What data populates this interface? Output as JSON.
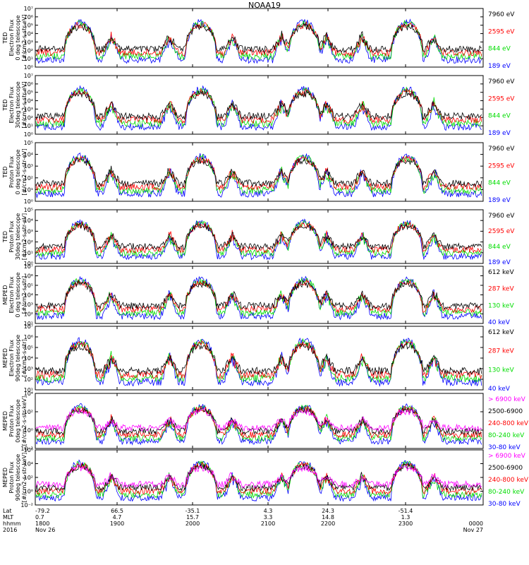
{
  "title": "NOAA19",
  "colors": {
    "black": "#000000",
    "red": "#ff0000",
    "green": "#00dd00",
    "blue": "#0000ff",
    "magenta": "#ff00ff"
  },
  "chart_data": [
    {
      "type": "line",
      "instrument": "TED",
      "ylabel": [
        "TED",
        "Electron Flux",
        "0 deg telescope",
        "[#/cm2-s-str-eV]"
      ],
      "ylim": [
        1,
        10000000
      ],
      "scale": "log",
      "yticks": [
        "10⁰",
        "10¹",
        "10²",
        "10³",
        "10⁴",
        "10⁵",
        "10⁶",
        "10⁷"
      ],
      "legend": [
        {
          "label": "7960 eV",
          "color": "#000000"
        },
        {
          "label": "2595 eV",
          "color": "#ff0000"
        },
        {
          "label": "844 eV",
          "color": "#00dd00"
        },
        {
          "label": "189 eV",
          "color": "#0000ff"
        }
      ]
    },
    {
      "type": "line",
      "instrument": "TED",
      "ylabel": [
        "TED",
        "Electron Flux",
        "30deg telescope",
        "[#/cm2-s-str-eV]"
      ],
      "ylim": [
        1,
        10000000
      ],
      "scale": "log",
      "yticks": [
        "10⁰",
        "10¹",
        "10²",
        "10³",
        "10⁴",
        "10⁵",
        "10⁶",
        "10⁷"
      ],
      "legend": [
        {
          "label": "7960 eV",
          "color": "#000000"
        },
        {
          "label": "2595 eV",
          "color": "#ff0000"
        },
        {
          "label": "844 eV",
          "color": "#00dd00"
        },
        {
          "label": "189 eV",
          "color": "#0000ff"
        }
      ]
    },
    {
      "type": "line",
      "instrument": "TED",
      "ylabel": [
        "TED",
        "Proton Flux",
        "0 deg telescope",
        "[#/cm2-s-str-eV]"
      ],
      "ylim": [
        1,
        100000
      ],
      "scale": "log",
      "yticks": [
        "10⁰",
        "10¹",
        "10²",
        "10³",
        "10⁴",
        "10⁵"
      ],
      "legend": [
        {
          "label": "7960 eV",
          "color": "#000000"
        },
        {
          "label": "2595 eV",
          "color": "#ff0000"
        },
        {
          "label": "844 eV",
          "color": "#00dd00"
        },
        {
          "label": "189 eV",
          "color": "#0000ff"
        }
      ]
    },
    {
      "type": "line",
      "instrument": "TED",
      "ylabel": [
        "TED",
        "Proton Flux",
        "30deg telescope",
        "[#/cm2-s-str-eV]"
      ],
      "ylim": [
        1,
        100000
      ],
      "scale": "log",
      "yticks": [
        "10⁰",
        "10¹",
        "10²",
        "10³",
        "10⁴",
        "10⁵"
      ],
      "legend": [
        {
          "label": "7960 eV",
          "color": "#000000"
        },
        {
          "label": "2595 eV",
          "color": "#ff0000"
        },
        {
          "label": "844 eV",
          "color": "#00dd00"
        },
        {
          "label": "189 eV",
          "color": "#0000ff"
        }
      ]
    },
    {
      "type": "line",
      "instrument": "MEPED",
      "ylabel": [
        "MEPED",
        "Electron Flux",
        "0 deg telescope",
        "[#/cm2-s-str]"
      ],
      "ylim": [
        10,
        10000000
      ],
      "scale": "log",
      "yticks": [
        "10¹",
        "10²",
        "10³",
        "10⁴",
        "10⁵",
        "10⁶",
        "10⁷"
      ],
      "legend": [
        {
          "label": "612 keV",
          "color": "#000000"
        },
        {
          "label": "287 keV",
          "color": "#ff0000"
        },
        {
          "label": "130 keV",
          "color": "#00dd00"
        },
        {
          "label": "40 keV",
          "color": "#0000ff"
        }
      ]
    },
    {
      "type": "line",
      "instrument": "MEPED",
      "ylabel": [
        "MEPED",
        "Electron Flux",
        "90deg telescope",
        "[#/cm2-s-str]"
      ],
      "ylim": [
        10,
        10000000
      ],
      "scale": "log",
      "yticks": [
        "10¹",
        "10²",
        "10³",
        "10⁴",
        "10⁵",
        "10⁶",
        "10⁷"
      ],
      "legend": [
        {
          "label": "612 keV",
          "color": "#000000"
        },
        {
          "label": "287 keV",
          "color": "#ff0000"
        },
        {
          "label": "130 keV",
          "color": "#00dd00"
        },
        {
          "label": "40 keV",
          "color": "#0000ff"
        }
      ]
    },
    {
      "type": "line",
      "instrument": "MEPED",
      "ylabel": [
        "MEPED",
        "Proton Flux",
        "0deg telescope",
        "[#/cm2-s-str-keV]"
      ],
      "ylim": [
        0.01,
        100000
      ],
      "scale": "log",
      "yticks": [
        "10⁻²",
        "10⁰",
        "10²",
        "10⁴"
      ],
      "legend": [
        {
          "label": "> 6900 keV",
          "color": "#ff00ff"
        },
        {
          "label": "2500-6900",
          "color": "#000000"
        },
        {
          "label": "240-800 keV",
          "color": "#ff0000"
        },
        {
          "label": "80-240 keV",
          "color": "#00dd00"
        },
        {
          "label": "30-80 keV",
          "color": "#0000ff"
        }
      ]
    },
    {
      "type": "line",
      "instrument": "MEPED",
      "ylabel": [
        "MEPED",
        "Proton Flux",
        "90deg telescope",
        "[#/cm2-s-str-keV]"
      ],
      "ylim": [
        0.01,
        1000000
      ],
      "scale": "log",
      "yticks": [
        "10⁻²",
        "10⁰",
        "10²",
        "10⁴",
        "10⁶"
      ],
      "legend": [
        {
          "label": "> 6900 keV",
          "color": "#ff00ff"
        },
        {
          "label": "2500-6900",
          "color": "#000000"
        },
        {
          "label": "240-800 keV",
          "color": "#ff0000"
        },
        {
          "label": "80-240 keV",
          "color": "#00dd00"
        },
        {
          "label": "30-80 keV",
          "color": "#0000ff"
        }
      ]
    }
  ],
  "x_axis": {
    "row_labels": [
      "Lat",
      "MLT",
      "hhmm",
      "2016"
    ],
    "ticks": [
      {
        "lat": "-79.2",
        "mlt": "0.7",
        "hhmm": "1800",
        "date": "Nov 26"
      },
      {
        "lat": "66.5",
        "mlt": "4.7",
        "hhmm": "1900",
        "date": ""
      },
      {
        "lat": "-35.1",
        "mlt": "15.7",
        "hhmm": "2000",
        "date": ""
      },
      {
        "lat": "4.3",
        "mlt": "3.3",
        "hhmm": "2100",
        "date": ""
      },
      {
        "lat": "24.3",
        "mlt": "14.8",
        "hhmm": "2200",
        "date": ""
      },
      {
        "lat": "-51.4",
        "mlt": "1.3",
        "hhmm": "2300",
        "date": ""
      },
      {
        "lat": "",
        "mlt": "",
        "hhmm": "0000",
        "date": "Nov 27"
      }
    ]
  }
}
